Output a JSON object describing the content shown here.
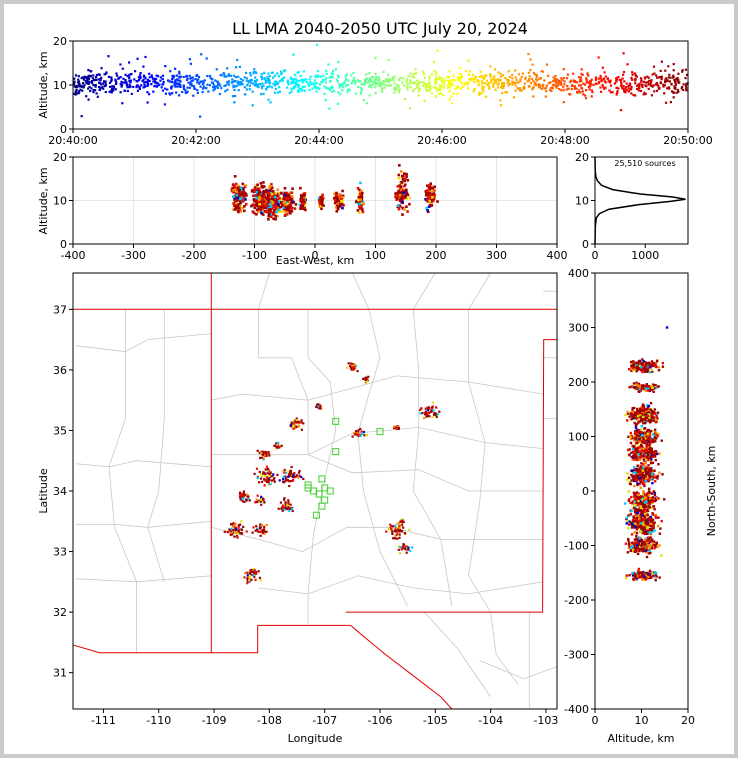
{
  "chart_data": [
    {
      "id": "time_height",
      "type": "scatter",
      "title": "LL LMA 2040-2050 UTC July 20, 2024",
      "xlabel": "",
      "ylabel": "Altitude, km",
      "x_ticks": [
        "20:40:00",
        "20:42:00",
        "20:44:00",
        "20:46:00",
        "20:48:00",
        "20:50:00"
      ],
      "x_range": [
        "20:40:00",
        "20:50:00"
      ],
      "ylim": [
        0,
        20
      ],
      "y_ticks": [
        0,
        10,
        20
      ],
      "colormap": "jet (color = time)",
      "typical_altitude_km": 10.5,
      "altitude_spread_km": 1.8
    },
    {
      "id": "ew_height",
      "type": "scatter",
      "xlabel": "East-West, km",
      "ylabel": "Altitude, km",
      "xlim": [
        -400,
        400
      ],
      "x_ticks": [
        -400,
        -300,
        -200,
        -100,
        0,
        100,
        200,
        300,
        400
      ],
      "ylim": [
        0,
        20
      ],
      "y_ticks": [
        0,
        10,
        20
      ],
      "grid": true,
      "clusters": [
        {
          "x": -125,
          "y": 11,
          "w": 14,
          "h": 4
        },
        {
          "x": -90,
          "y": 10,
          "w": 16,
          "h": 4
        },
        {
          "x": -70,
          "y": 9.5,
          "w": 18,
          "h": 4
        },
        {
          "x": -45,
          "y": 9.5,
          "w": 12,
          "h": 3
        },
        {
          "x": -20,
          "y": 10,
          "w": 6,
          "h": 3
        },
        {
          "x": 10,
          "y": 10,
          "w": 4,
          "h": 2
        },
        {
          "x": 40,
          "y": 10,
          "w": 10,
          "h": 2.5
        },
        {
          "x": 75,
          "y": 10,
          "w": 6,
          "h": 4
        },
        {
          "x": 145,
          "y": 12,
          "w": 12,
          "h": 5
        },
        {
          "x": 190,
          "y": 11,
          "w": 10,
          "h": 3
        }
      ]
    },
    {
      "id": "altitude_histogram",
      "type": "line",
      "annotation": "25,510 sources",
      "xlim": [
        0,
        1850
      ],
      "x_ticks": [
        0,
        1000
      ],
      "ylim": [
        0,
        20
      ],
      "y_ticks": [
        0,
        10,
        20
      ],
      "peak_count": 1800,
      "peak_altitude_km": 10.3,
      "profile": [
        {
          "alt": 0,
          "count": 0
        },
        {
          "alt": 4,
          "count": 5
        },
        {
          "alt": 6,
          "count": 25
        },
        {
          "alt": 7,
          "count": 90
        },
        {
          "alt": 8,
          "count": 280
        },
        {
          "alt": 9,
          "count": 850
        },
        {
          "alt": 9.8,
          "count": 1500
        },
        {
          "alt": 10.3,
          "count": 1800
        },
        {
          "alt": 10.8,
          "count": 1550
        },
        {
          "alt": 11.5,
          "count": 900
        },
        {
          "alt": 12.5,
          "count": 350
        },
        {
          "alt": 13.5,
          "count": 130
        },
        {
          "alt": 14.5,
          "count": 50
        },
        {
          "alt": 15.5,
          "count": 15
        },
        {
          "alt": 17,
          "count": 3
        },
        {
          "alt": 20,
          "count": 0
        }
      ]
    },
    {
      "id": "plan_view",
      "type": "scatter",
      "xlabel": "Longitude",
      "ylabel": "Latitude",
      "xlim": [
        -111.55,
        -102.8
      ],
      "x_ticks": [
        -111,
        -110,
        -109,
        -108,
        -107,
        -106,
        -105,
        -104,
        -103
      ],
      "ylim": [
        30.4,
        37.6
      ],
      "y_ticks": [
        31,
        32,
        33,
        34,
        35,
        36,
        37
      ],
      "stations_marker": "green open squares",
      "clusters": [
        {
          "lon": -106.5,
          "lat": 36.05,
          "r": 0.1
        },
        {
          "lon": -106.25,
          "lat": 35.85,
          "r": 0.06
        },
        {
          "lon": -107.1,
          "lat": 35.4,
          "r": 0.05
        },
        {
          "lon": -107.5,
          "lat": 35.1,
          "r": 0.12
        },
        {
          "lon": -106.4,
          "lat": 34.95,
          "r": 0.12
        },
        {
          "lon": -105.7,
          "lat": 35.05,
          "r": 0.05
        },
        {
          "lon": -105.1,
          "lat": 35.3,
          "r": 0.17
        },
        {
          "lon": -107.85,
          "lat": 34.75,
          "r": 0.08
        },
        {
          "lon": -108.1,
          "lat": 34.6,
          "r": 0.1
        },
        {
          "lon": -108.05,
          "lat": 34.25,
          "r": 0.2
        },
        {
          "lon": -107.6,
          "lat": 34.25,
          "r": 0.18
        },
        {
          "lon": -107.7,
          "lat": 33.75,
          "r": 0.15
        },
        {
          "lon": -108.45,
          "lat": 33.9,
          "r": 0.12
        },
        {
          "lon": -108.15,
          "lat": 33.85,
          "r": 0.1
        },
        {
          "lon": -108.6,
          "lat": 33.35,
          "r": 0.18
        },
        {
          "lon": -108.15,
          "lat": 33.35,
          "r": 0.12
        },
        {
          "lon": -105.7,
          "lat": 33.35,
          "r": 0.18
        },
        {
          "lon": -105.55,
          "lat": 33.05,
          "r": 0.1
        },
        {
          "lon": -105.6,
          "lat": 33.5,
          "r": 0.05
        },
        {
          "lon": -108.3,
          "lat": 32.6,
          "r": 0.14
        }
      ],
      "stations": [
        {
          "lon": -107.2,
          "lat": 34.0
        },
        {
          "lon": -107.1,
          "lat": 33.95
        },
        {
          "lon": -107.0,
          "lat": 34.05
        },
        {
          "lon": -107.3,
          "lat": 34.05
        },
        {
          "lon": -107.05,
          "lat": 34.2
        },
        {
          "lon": -106.9,
          "lat": 34.0
        },
        {
          "lon": -107.0,
          "lat": 33.85
        },
        {
          "lon": -107.05,
          "lat": 33.75
        },
        {
          "lon": -107.15,
          "lat": 33.6
        },
        {
          "lon": -107.3,
          "lat": 34.1
        },
        {
          "lon": -106.8,
          "lat": 34.65
        },
        {
          "lon": -106.8,
          "lat": 35.15
        },
        {
          "lon": -106.0,
          "lat": 34.98
        }
      ]
    },
    {
      "id": "ns_height",
      "type": "scatter",
      "xlabel": "Altitude, km",
      "ylabel": "North-South, km",
      "xlim": [
        0,
        20
      ],
      "x_ticks": [
        0,
        10,
        20
      ],
      "ylim": [
        -400,
        400
      ],
      "y_ticks": [
        -400,
        -300,
        -200,
        -100,
        0,
        100,
        200,
        300,
        400
      ],
      "bands": [
        {
          "y": 230,
          "w": 15
        },
        {
          "y": 190,
          "w": 10
        },
        {
          "y": 140,
          "w": 22
        },
        {
          "y": 100,
          "w": 20
        },
        {
          "y": 70,
          "w": 22
        },
        {
          "y": 30,
          "w": 25
        },
        {
          "y": -20,
          "w": 25
        },
        {
          "y": -60,
          "w": 30
        },
        {
          "y": -100,
          "w": 20
        },
        {
          "y": -155,
          "w": 12
        }
      ]
    }
  ]
}
